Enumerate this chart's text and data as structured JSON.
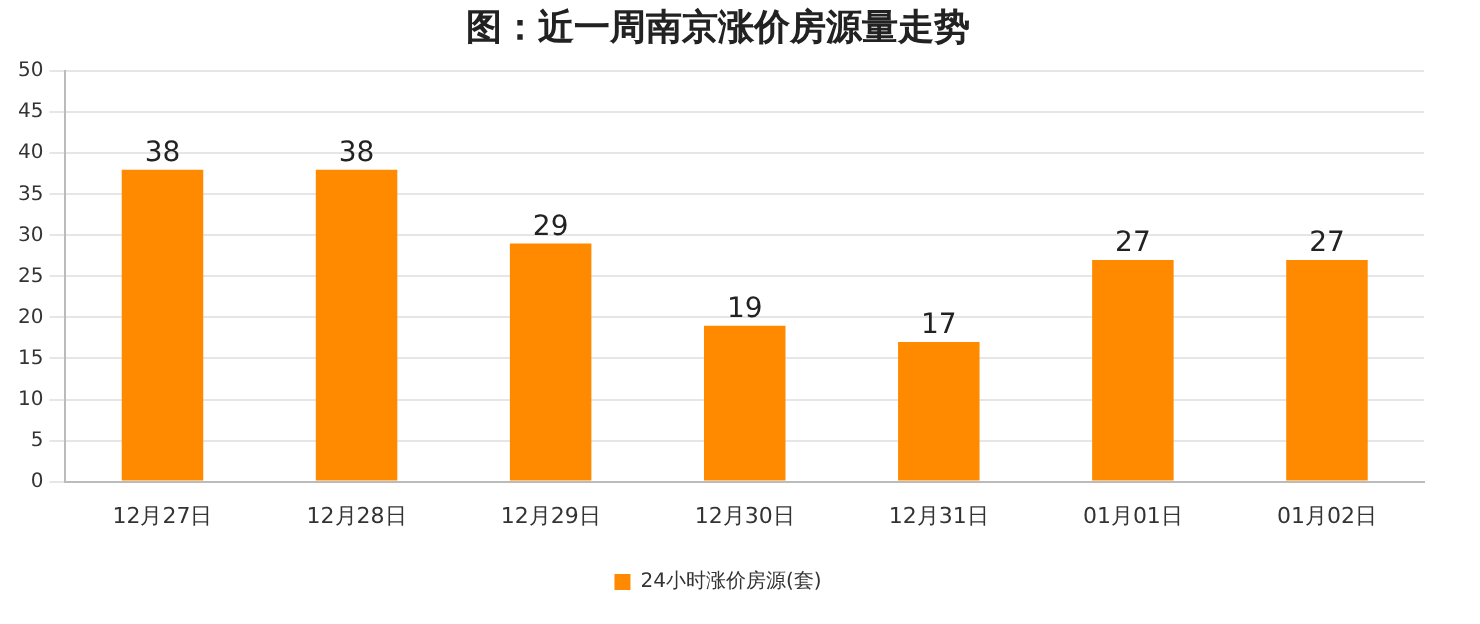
{
  "chart_data": {
    "type": "bar",
    "title": "图：近一周南京涨价房源量走势",
    "categories": [
      "12月27日",
      "12月28日",
      "12月29日",
      "12月30日",
      "12月31日",
      "01月01日",
      "01月02日"
    ],
    "series": [
      {
        "name": "24小时涨价房源(套)",
        "color": "#ff8a00",
        "values": [
          38,
          38,
          29,
          19,
          17,
          27,
          27
        ]
      }
    ],
    "ylim": [
      0,
      50
    ],
    "yticks": [
      0,
      5,
      10,
      15,
      20,
      25,
      30,
      35,
      40,
      45,
      50
    ],
    "grid": "y",
    "legend": "bottom",
    "data_labels": true
  }
}
